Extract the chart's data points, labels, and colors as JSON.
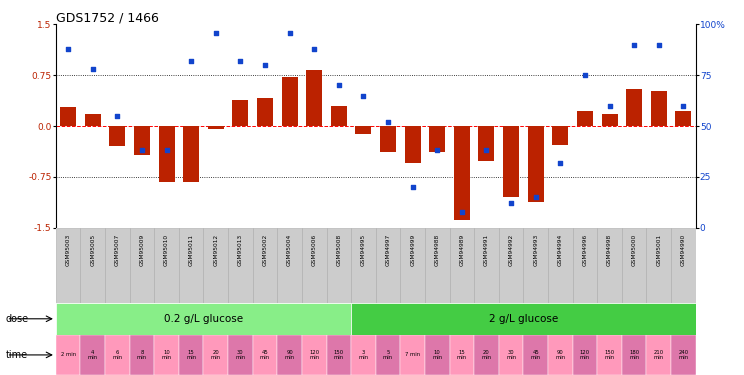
{
  "title": "GDS1752 / 1466",
  "samples": [
    "GSM95003",
    "GSM95005",
    "GSM95007",
    "GSM95009",
    "GSM95010",
    "GSM95011",
    "GSM95012",
    "GSM95013",
    "GSM95002",
    "GSM95004",
    "GSM95006",
    "GSM95008",
    "GSM94995",
    "GSM94997",
    "GSM94999",
    "GSM94988",
    "GSM94989",
    "GSM94991",
    "GSM94992",
    "GSM94993",
    "GSM94994",
    "GSM94996",
    "GSM94998",
    "GSM95000",
    "GSM95001",
    "GSM94990"
  ],
  "log2_ratio": [
    0.28,
    0.18,
    -0.3,
    -0.42,
    -0.82,
    -0.82,
    -0.05,
    0.38,
    0.42,
    0.72,
    0.82,
    0.3,
    -0.12,
    -0.38,
    -0.55,
    -0.38,
    -1.38,
    -0.52,
    -1.05,
    -1.12,
    -0.28,
    0.22,
    0.18,
    0.55,
    0.52,
    0.22
  ],
  "percentile": [
    88,
    78,
    55,
    38,
    38,
    82,
    96,
    82,
    80,
    96,
    88,
    70,
    65,
    52,
    20,
    38,
    8,
    38,
    12,
    15,
    32,
    75,
    60,
    90,
    90,
    60
  ],
  "time_labels": [
    "2 min",
    "4\nmin",
    "6\nmin",
    "8\nmin",
    "10\nmin",
    "15\nmin",
    "20\nmin",
    "30\nmin",
    "45\nmin",
    "90\nmin",
    "120\nmin",
    "150\nmin",
    "3\nmin",
    "5\nmin",
    "7 min",
    "10\nmin",
    "15\nmin",
    "20\nmin",
    "30\nmin",
    "45\nmin",
    "90\nmin",
    "120\nmin",
    "150\nmin",
    "180\nmin",
    "210\nmin",
    "240\nmin"
  ],
  "dose_groups": [
    {
      "label": "0.2 g/L glucose",
      "start": 0,
      "end": 12
    },
    {
      "label": "2 g/L glucose",
      "start": 12,
      "end": 26
    }
  ],
  "ylim": [
    -1.5,
    1.5
  ],
  "yticks_left": [
    -1.5,
    -0.75,
    0.0,
    0.75,
    1.5
  ],
  "yticks_right": [
    0,
    25,
    50,
    75,
    100
  ],
  "bar_color": "#bb2200",
  "dot_color": "#1144cc",
  "dose_color_1": "#88ee88",
  "dose_color_2": "#44cc44",
  "time_color_1": "#ff99bb",
  "time_color_2": "#dd77aa",
  "bg_color": "#ffffff",
  "sample_bg": "#cccccc",
  "sample_border": "#aaaaaa"
}
